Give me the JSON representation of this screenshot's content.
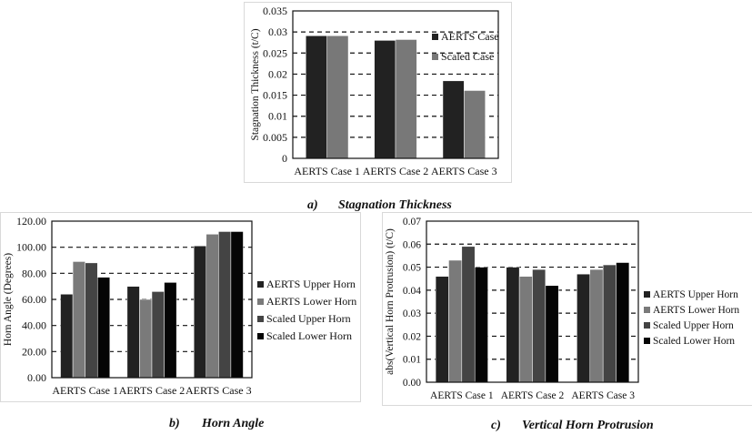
{
  "chart_data": [
    {
      "id": "a",
      "type": "bar",
      "title": "",
      "caption_letter": "a)",
      "caption": "Stagnation Thickness",
      "xlabel": "",
      "ylabel": "Stagnation Thickness (t/C)",
      "ylim": [
        0,
        0.035
      ],
      "yticks": [
        "0",
        "0.005",
        "0.01",
        "0.015",
        "0.02",
        "0.025",
        "0.03",
        "0.035"
      ],
      "grid": "dashed horizontal",
      "legend_position": "top-right inside",
      "categories": [
        "AERTS Case 1",
        "AERTS Case 2",
        "AERTS Case 3"
      ],
      "series": [
        {
          "name": "AERTS Case",
          "color": "#222222",
          "values": [
            0.0291,
            0.028,
            0.0184
          ]
        },
        {
          "name": "Scaled Case",
          "color": "#787878",
          "values": [
            0.0291,
            0.0282,
            0.0161
          ]
        }
      ]
    },
    {
      "id": "b",
      "type": "bar",
      "title": "",
      "caption_letter": "b)",
      "caption": "Horn Angle",
      "xlabel": "",
      "ylabel": "Horn Angle (Degrees)",
      "ylim": [
        0,
        120
      ],
      "yticks": [
        "0.00",
        "20.00",
        "40.00",
        "60.00",
        "80.00",
        "100.00",
        "120.00"
      ],
      "grid": "dashed horizontal",
      "legend_position": "right",
      "categories": [
        "AERTS Case 1",
        "AERTS Case 2",
        "AERTS Case 3"
      ],
      "series": [
        {
          "name": "AERTS Upper Horn",
          "color": "#222222",
          "values": [
            64,
            70,
            101
          ]
        },
        {
          "name": "AERTS Lower Horn",
          "color": "#7a7a7a",
          "values": [
            89,
            60,
            110
          ]
        },
        {
          "name": "Scaled Upper Horn",
          "color": "#444444",
          "values": [
            88,
            66,
            112
          ]
        },
        {
          "name": "Scaled Lower Horn",
          "color": "#050505",
          "values": [
            77,
            73,
            112
          ]
        }
      ]
    },
    {
      "id": "c",
      "type": "bar",
      "title": "",
      "caption_letter": "c)",
      "caption": "Vertical Horn Protrusion",
      "xlabel": "",
      "ylabel": "abs(Vertical Horn Protrusion) (t/C)",
      "ylim": [
        0,
        0.07
      ],
      "yticks": [
        "0.00",
        "0.01",
        "0.02",
        "0.03",
        "0.04",
        "0.05",
        "0.06",
        "0.07"
      ],
      "grid": "dashed horizontal",
      "legend_position": "right",
      "categories": [
        "AERTS Case 1",
        "AERTS Case 2",
        "AERTS Case 3"
      ],
      "series": [
        {
          "name": "AERTS Upper Horn",
          "color": "#222222",
          "values": [
            0.046,
            0.05,
            0.047
          ]
        },
        {
          "name": "AERTS Lower Horn",
          "color": "#7a7a7a",
          "values": [
            0.053,
            0.046,
            0.049
          ]
        },
        {
          "name": "Scaled Upper Horn",
          "color": "#444444",
          "values": [
            0.059,
            0.049,
            0.051
          ]
        },
        {
          "name": "Scaled Lower Horn",
          "color": "#050505",
          "values": [
            0.05,
            0.042,
            0.052
          ]
        }
      ]
    }
  ]
}
